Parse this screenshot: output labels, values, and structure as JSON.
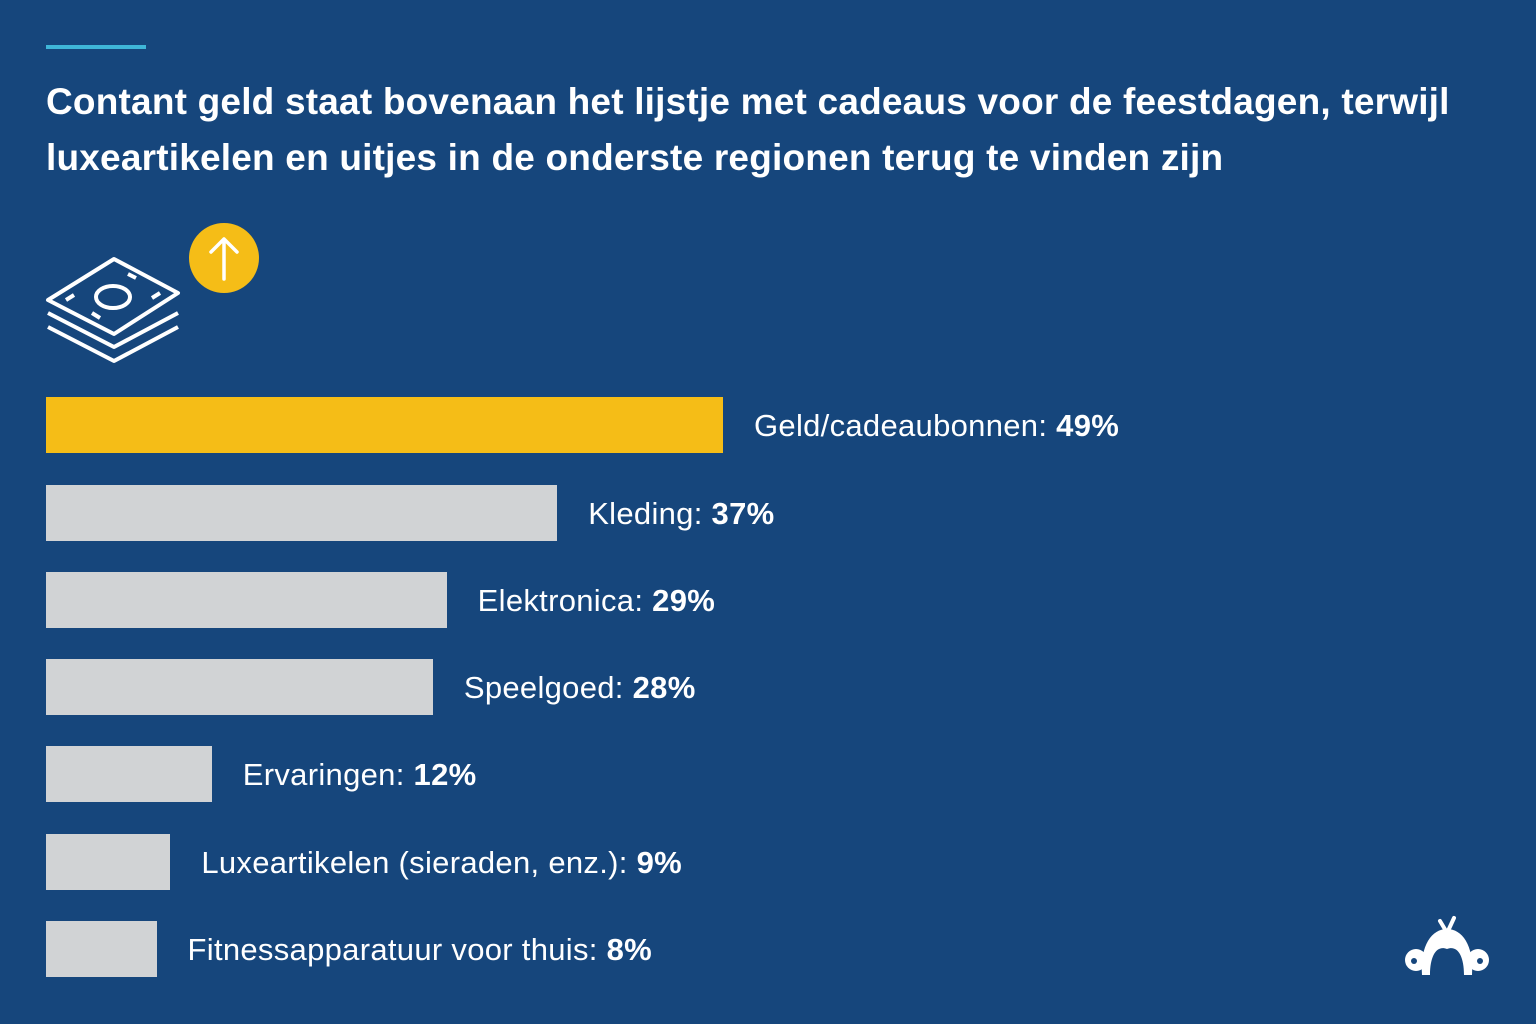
{
  "title": "Contant geld staat bovenaan het lijstje met cadeaus voor de feestdagen, terwijl luxeartikelen en uitjes in de onderste regionen terug te vinden zijn",
  "icons": [
    "money-stack-icon",
    "arrow-up-circle-icon",
    "surveymonkey-logo-icon"
  ],
  "colors": {
    "background": "#16467c",
    "highlight": "#f5bd17",
    "bar": "#d1d3d5",
    "accent": "#3fb6d8"
  },
  "chart_data": {
    "type": "bar",
    "orientation": "horizontal",
    "title": "Contant geld staat bovenaan het lijstje met cadeaus voor de feestdagen, terwijl luxeartikelen en uitjes in de onderste regionen terug te vinden zijn",
    "categories": [
      "Geld/cadeaubonnen",
      "Kleding",
      "Elektronica",
      "Speelgoed",
      "Ervaringen",
      "Luxeartikelen (sieraden, enz.)",
      "Fitnessapparatuur voor thuis"
    ],
    "values": [
      49,
      37,
      29,
      28,
      12,
      9,
      8
    ],
    "value_labels": [
      "49%",
      "37%",
      "29%",
      "28%",
      "12%",
      "9%",
      "8%"
    ],
    "highlighted": [
      "Geld/cadeaubonnen"
    ],
    "xlim": [
      0,
      49
    ],
    "grid": false,
    "axes_visible": false
  }
}
